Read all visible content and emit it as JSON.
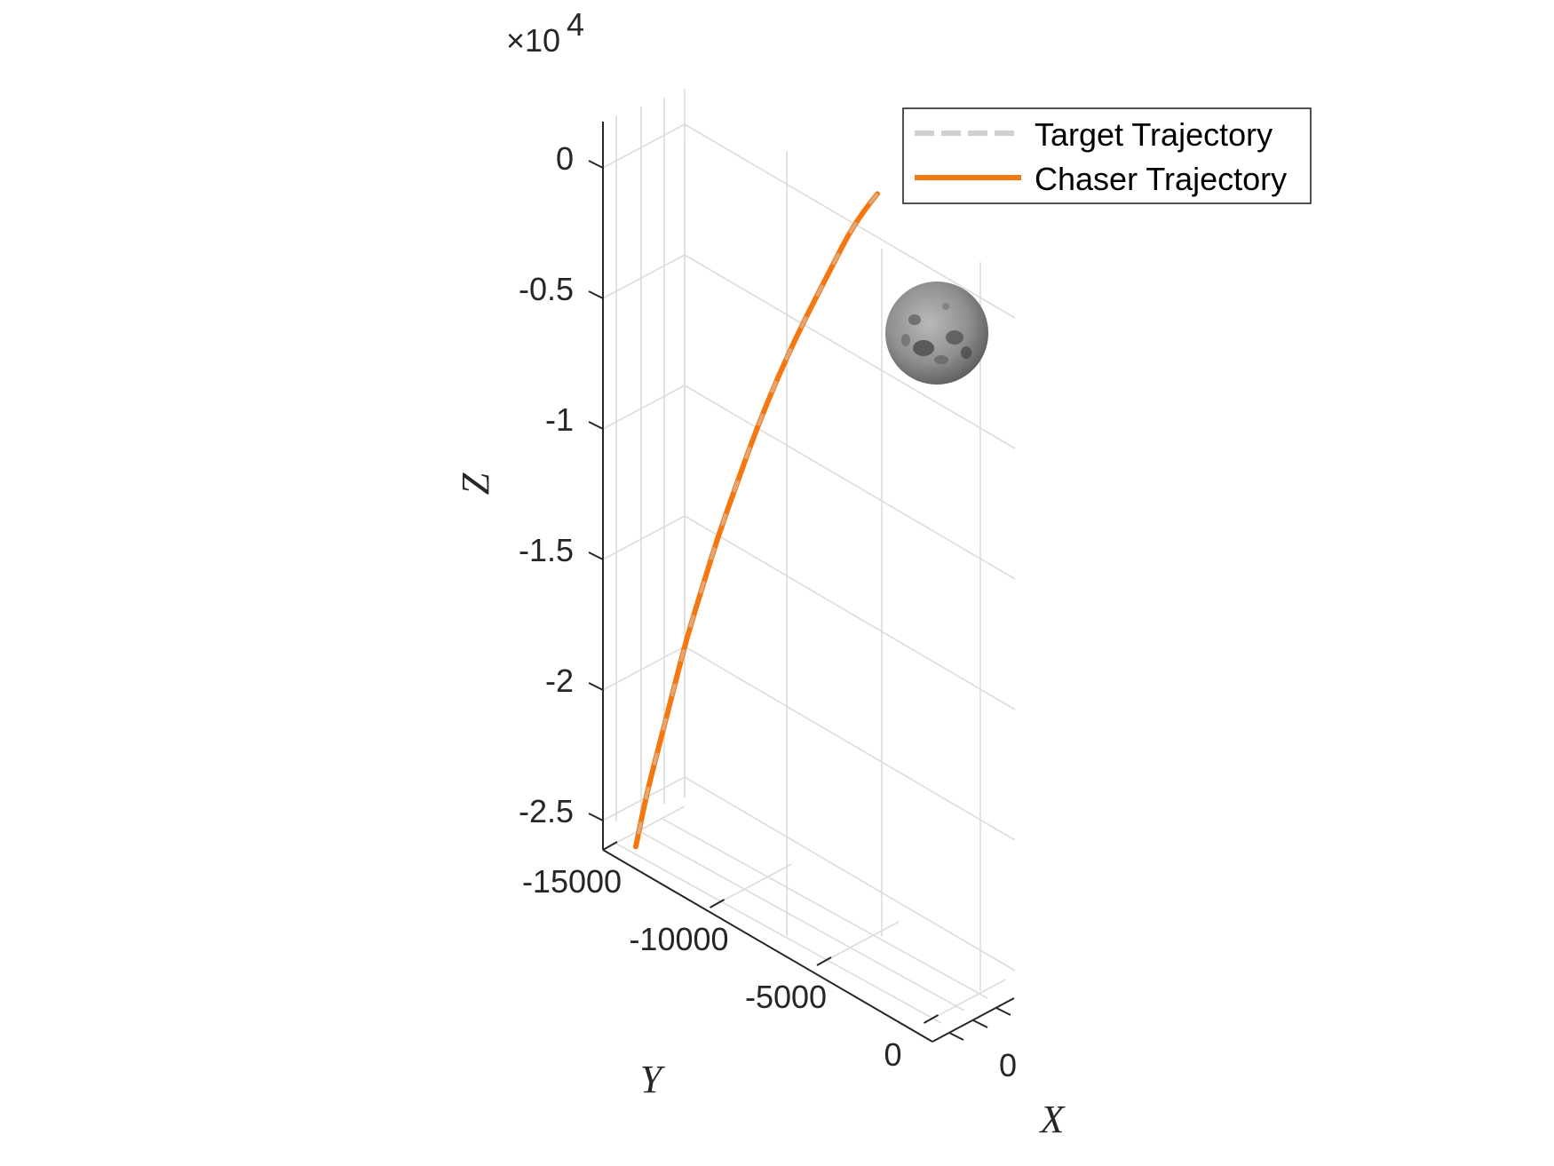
{
  "chart_data": {
    "type": "line",
    "projection": "3d",
    "xlabel": "X",
    "ylabel": "Y",
    "zlabel": "Z",
    "z_exponent_base": "×10",
    "z_exponent_power": "4",
    "z_ticks": [
      0,
      -0.5,
      -1,
      -1.5,
      -2,
      -2.5
    ],
    "z_tick_labels": [
      "0",
      "-0.5",
      "-1",
      "-1.5",
      "-2",
      "-2.5"
    ],
    "y_ticks": [
      -15000,
      -10000,
      -5000,
      0
    ],
    "y_tick_labels": [
      "-15000",
      "-10000",
      "-5000",
      "0"
    ],
    "x_tick_labels": [
      "0"
    ],
    "grid": true,
    "legend_position": "top-right",
    "colors": {
      "target": "#d0d0d0",
      "chaser": "#f5770f",
      "grid": "#dcdcdc",
      "axis": "#262626"
    },
    "series": [
      {
        "name": "Target Trajectory",
        "style": "dashed",
        "z": [
          -0.1,
          -0.2,
          -0.4,
          -0.6,
          -0.8,
          -1.0,
          -1.2,
          -1.4,
          -1.6,
          -1.8,
          -2.0,
          -2.2,
          -2.4,
          -2.6
        ],
        "y": [
          0,
          -800,
          -1800,
          -2800,
          -3700,
          -4500,
          -5200,
          -5900,
          -6500,
          -7100,
          -7600,
          -8100,
          -8600,
          -9000
        ]
      },
      {
        "name": "Chaser Trajectory",
        "style": "solid",
        "z": [
          -0.1,
          -0.2,
          -0.4,
          -0.6,
          -0.8,
          -1.0,
          -1.2,
          -1.4,
          -1.6,
          -1.8,
          -2.0,
          -2.2,
          -2.4,
          -2.6
        ],
        "y": [
          0,
          -800,
          -1800,
          -2800,
          -3700,
          -4500,
          -5200,
          -5900,
          -6500,
          -7100,
          -7600,
          -8100,
          -8600,
          -9000
        ]
      }
    ],
    "image_marker": "moon"
  }
}
